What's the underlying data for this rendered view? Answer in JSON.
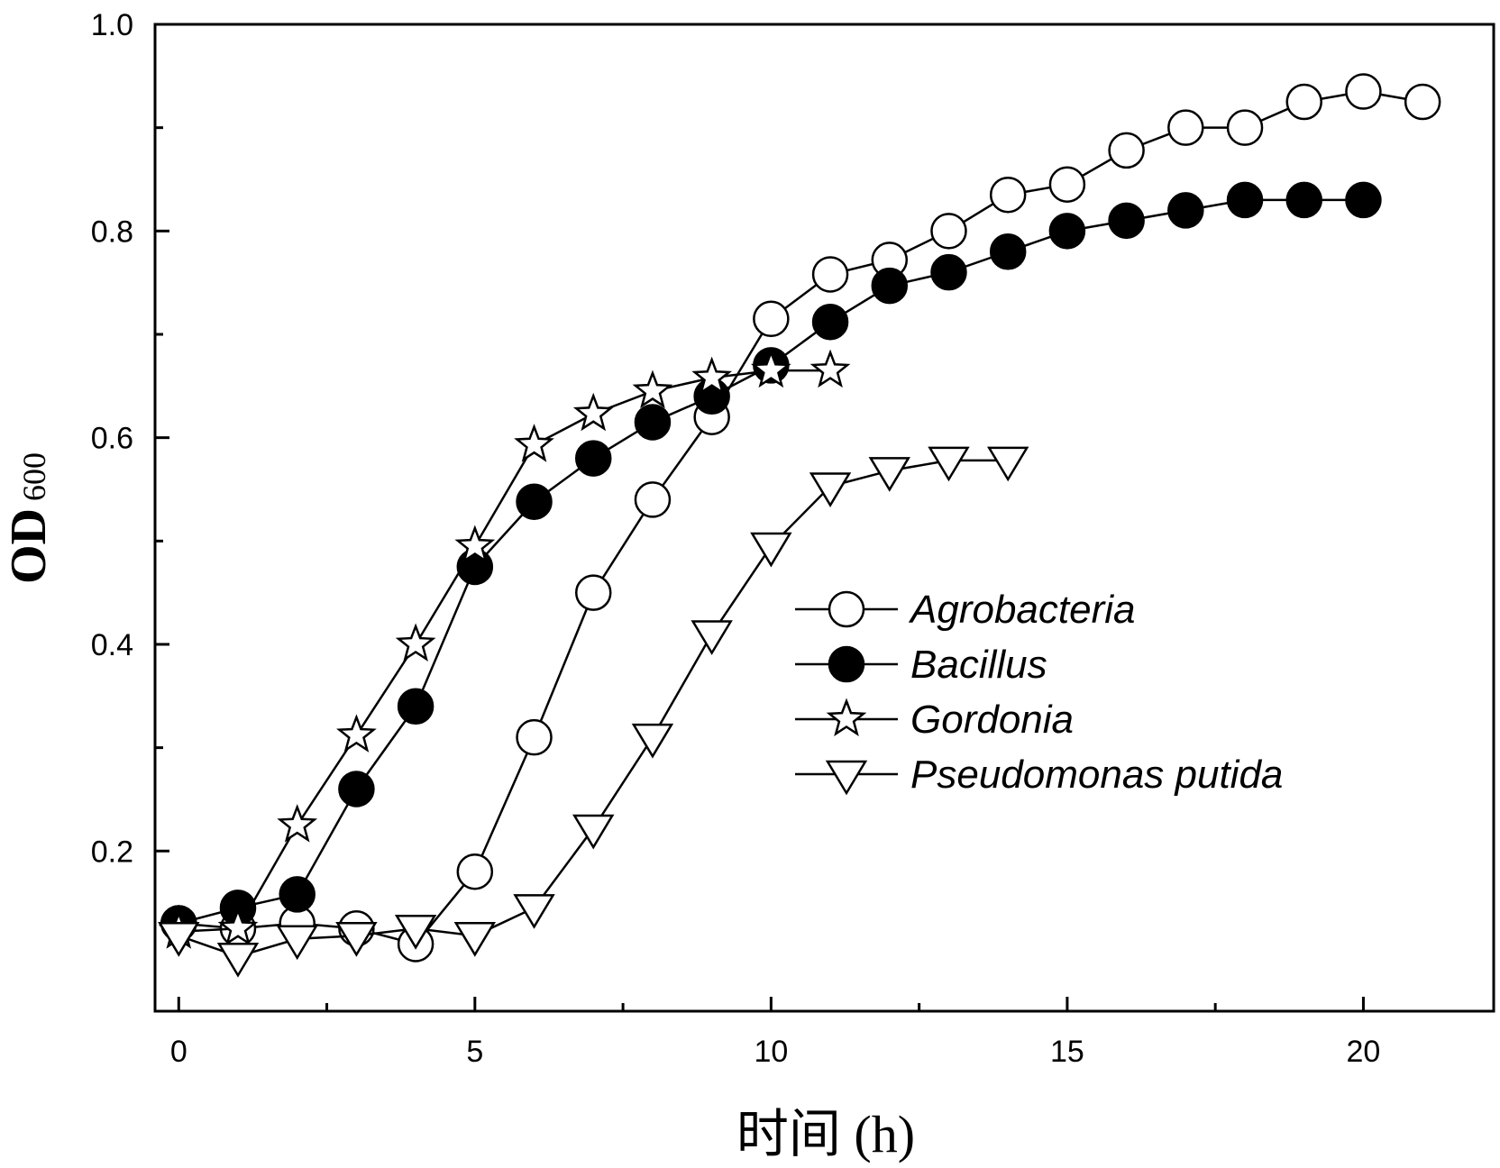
{
  "chart_data": {
    "type": "line",
    "title": "",
    "xlabel": "时间 (h)",
    "ylabel_main": "OD",
    "ylabel_sub": "600",
    "xlim": [
      -0.4,
      22.2
    ],
    "ylim": [
      0.045,
      1.0
    ],
    "x_ticks": [
      0,
      5,
      10,
      15,
      20
    ],
    "x_minor_ticks": [
      2.5,
      7.5,
      12.5,
      17.5
    ],
    "y_ticks": [
      0.2,
      0.4,
      0.6,
      0.8,
      1.0
    ],
    "y_tick_labels": [
      "0.2",
      "0.4",
      "0.6",
      "0.8",
      "1.0"
    ],
    "y_minor_ticks": [
      0.3,
      0.5,
      0.7,
      0.9
    ],
    "grid": false,
    "legend_position": "center-right",
    "series": [
      {
        "name": "Agrobacteria",
        "marker": "open-circle",
        "x": [
          0,
          1,
          2,
          3,
          4,
          5,
          6,
          7,
          8,
          9,
          10,
          11,
          12,
          13,
          14,
          15,
          16,
          17,
          18,
          19,
          20,
          21
        ],
        "y": [
          0.13,
          0.125,
          0.13,
          0.125,
          0.11,
          0.18,
          0.31,
          0.45,
          0.54,
          0.62,
          0.715,
          0.758,
          0.772,
          0.8,
          0.835,
          0.845,
          0.878,
          0.9,
          0.9,
          0.925,
          0.935,
          0.925
        ]
      },
      {
        "name": "Bacillus",
        "marker": "filled-circle",
        "x": [
          0,
          1,
          2,
          3,
          4,
          5,
          6,
          7,
          8,
          9,
          10,
          11,
          12,
          13,
          14,
          15,
          16,
          17,
          18,
          19,
          20
        ],
        "y": [
          0.13,
          0.145,
          0.158,
          0.26,
          0.34,
          0.475,
          0.538,
          0.58,
          0.615,
          0.64,
          0.67,
          0.712,
          0.747,
          0.76,
          0.78,
          0.8,
          0.81,
          0.82,
          0.83,
          0.83,
          0.83
        ]
      },
      {
        "name": "Gordonia",
        "marker": "open-star",
        "x": [
          0,
          1,
          2,
          3,
          4,
          5,
          6,
          7,
          8,
          9,
          10,
          11
        ],
        "y": [
          0.122,
          0.125,
          0.225,
          0.312,
          0.4,
          0.495,
          0.593,
          0.623,
          0.645,
          0.658,
          0.665,
          0.665
        ]
      },
      {
        "name": "Pseudomonas putida",
        "marker": "open-triangle-down",
        "x": [
          0,
          1,
          2,
          3,
          4,
          5,
          6,
          7,
          8,
          9,
          10,
          11,
          12,
          13,
          14
        ],
        "y": [
          0.118,
          0.098,
          0.115,
          0.118,
          0.125,
          0.118,
          0.145,
          0.222,
          0.31,
          0.41,
          0.495,
          0.553,
          0.568,
          0.578,
          0.578
        ]
      }
    ]
  }
}
